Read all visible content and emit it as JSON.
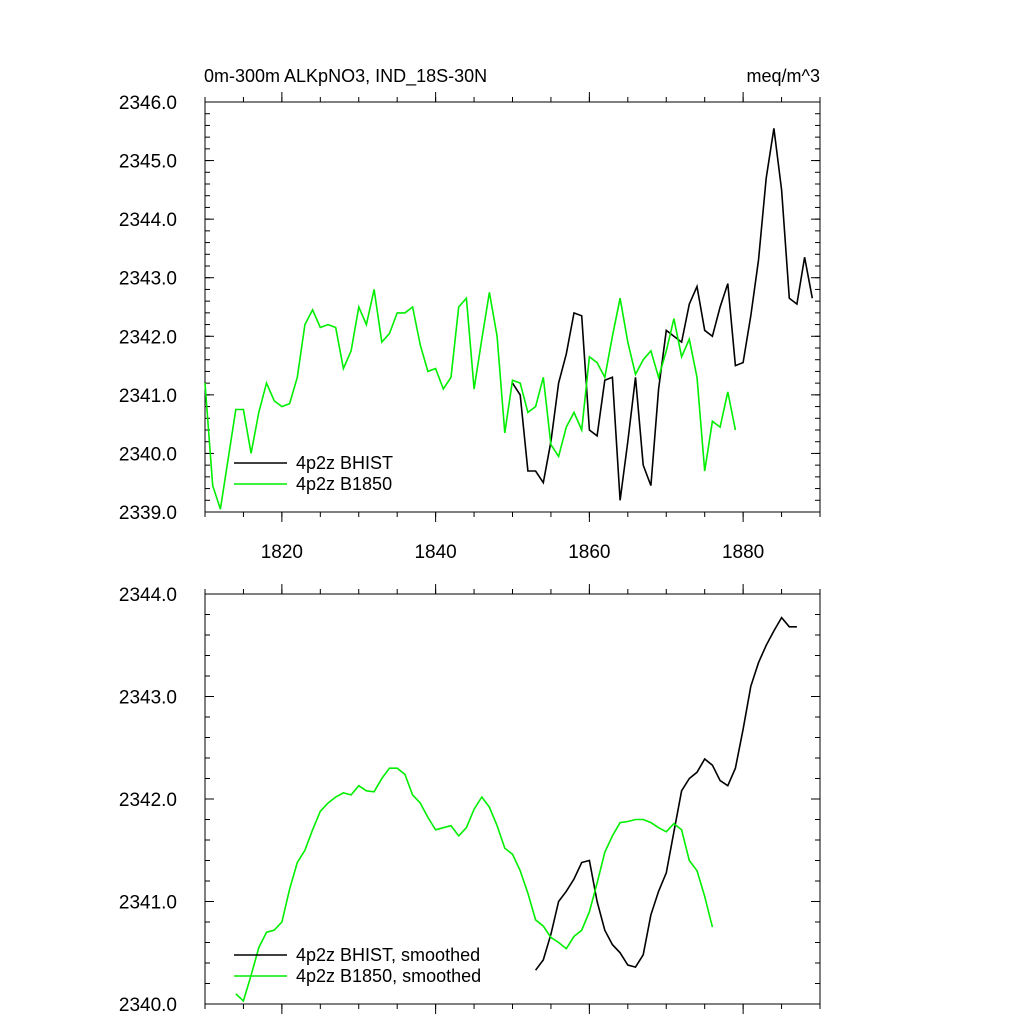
{
  "chart_data": [
    {
      "type": "line",
      "title": "0m-300m ALKpNO3, IND_18S-30N",
      "units": "meq/m^3",
      "xlabel": "",
      "ylabel": "",
      "xlim": [
        1810,
        1890
      ],
      "ylim": [
        2339.0,
        2346.0
      ],
      "x_ticks": [
        1820,
        1840,
        1860,
        1880
      ],
      "x_tick_labels": [
        "1820",
        "1840",
        "1860",
        "1880"
      ],
      "y_ticks": [
        2339.0,
        2340.0,
        2341.0,
        2342.0,
        2343.0,
        2344.0,
        2345.0,
        2346.0
      ],
      "y_tick_labels": [
        "2339.0",
        "2340.0",
        "2341.0",
        "2342.0",
        "2343.0",
        "2344.0",
        "2345.0",
        "2346.0"
      ],
      "legend_position": "bottom-left",
      "grid": false,
      "series": [
        {
          "name": "4p2z BHIST",
          "color": "#000000",
          "x": [
            1850,
            1851,
            1852,
            1853,
            1854,
            1855,
            1856,
            1857,
            1858,
            1859,
            1860,
            1861,
            1862,
            1863,
            1864,
            1865,
            1866,
            1867,
            1868,
            1869,
            1870,
            1871,
            1872,
            1873,
            1874,
            1875,
            1876,
            1877,
            1878,
            1879,
            1880,
            1881,
            1882,
            1883,
            1884,
            1885,
            1886,
            1887,
            1888,
            1889
          ],
          "y": [
            2341.2,
            2341.0,
            2339.7,
            2339.7,
            2339.5,
            2340.2,
            2341.2,
            2341.7,
            2342.4,
            2342.35,
            2340.4,
            2340.3,
            2341.25,
            2341.3,
            2339.2,
            2340.2,
            2341.3,
            2339.8,
            2339.45,
            2341.1,
            2342.1,
            2342.0,
            2341.9,
            2342.55,
            2342.85,
            2342.1,
            2342.0,
            2342.5,
            2342.9,
            2341.5,
            2341.55,
            2342.35,
            2343.3,
            2344.7,
            2345.55,
            2344.5,
            2342.65,
            2342.55,
            2343.35,
            2342.65
          ]
        },
        {
          "name": "4p2z B1850",
          "color": "#00ee00",
          "x": [
            1810,
            1811,
            1812,
            1813,
            1814,
            1815,
            1816,
            1817,
            1818,
            1819,
            1820,
            1821,
            1822,
            1823,
            1824,
            1825,
            1826,
            1827,
            1828,
            1829,
            1830,
            1831,
            1832,
            1833,
            1834,
            1835,
            1836,
            1837,
            1838,
            1839,
            1840,
            1841,
            1842,
            1843,
            1844,
            1845,
            1846,
            1847,
            1848,
            1849,
            1850,
            1851,
            1852,
            1853,
            1854,
            1855,
            1856,
            1857,
            1858,
            1859,
            1860,
            1861,
            1862,
            1863,
            1864,
            1865,
            1866,
            1867,
            1868,
            1869,
            1870,
            1871,
            1872,
            1873,
            1874,
            1875,
            1876,
            1877,
            1878,
            1879
          ],
          "y": [
            2341.2,
            2339.45,
            2339.05,
            2339.9,
            2340.75,
            2340.75,
            2340.0,
            2340.7,
            2341.2,
            2340.9,
            2340.8,
            2340.85,
            2341.3,
            2342.2,
            2342.45,
            2342.15,
            2342.2,
            2342.15,
            2341.45,
            2341.75,
            2342.5,
            2342.2,
            2342.8,
            2341.9,
            2342.05,
            2342.4,
            2342.4,
            2342.5,
            2341.85,
            2341.4,
            2341.45,
            2341.1,
            2341.3,
            2342.5,
            2342.65,
            2341.1,
            2341.95,
            2342.75,
            2342.0,
            2340.35,
            2341.25,
            2341.2,
            2340.7,
            2340.8,
            2341.3,
            2340.15,
            2339.95,
            2340.45,
            2340.7,
            2340.4,
            2341.65,
            2341.55,
            2341.3,
            2342.0,
            2342.65,
            2341.9,
            2341.35,
            2341.6,
            2341.75,
            2341.3,
            2341.75,
            2342.3,
            2341.65,
            2341.95,
            2341.3,
            2339.7,
            2340.55,
            2340.45,
            2341.05,
            2340.4
          ]
        }
      ]
    },
    {
      "type": "line",
      "title": "",
      "xlabel": "",
      "ylabel": "",
      "xlim": [
        1810,
        1890
      ],
      "ylim": [
        2340.0,
        2344.0
      ],
      "x_ticks": [
        1820,
        1840,
        1860,
        1880
      ],
      "y_ticks": [
        2340.0,
        2341.0,
        2342.0,
        2343.0,
        2344.0
      ],
      "y_tick_labels": [
        "2340.0",
        "2341.0",
        "2342.0",
        "2343.0",
        "2344.0"
      ],
      "legend_position": "bottom-left",
      "grid": false,
      "series": [
        {
          "name": "4p2z BHIST, smoothed",
          "color": "#000000",
          "x": [
            1853,
            1854,
            1855,
            1856,
            1857,
            1858,
            1859,
            1860,
            1861,
            1862,
            1863,
            1864,
            1865,
            1866,
            1867,
            1868,
            1869,
            1870,
            1871,
            1872,
            1873,
            1874,
            1875,
            1876,
            1877,
            1878,
            1879,
            1880,
            1881,
            1882,
            1883,
            1884,
            1885,
            1886,
            1887
          ],
          "y": [
            2340.33,
            2340.43,
            2340.68,
            2341.0,
            2341.1,
            2341.22,
            2341.38,
            2341.4,
            2341.0,
            2340.72,
            2340.58,
            2340.5,
            2340.38,
            2340.36,
            2340.48,
            2340.87,
            2341.1,
            2341.28,
            2341.68,
            2342.08,
            2342.2,
            2342.26,
            2342.39,
            2342.33,
            2342.18,
            2342.13,
            2342.3,
            2342.68,
            2343.1,
            2343.33,
            2343.5,
            2343.64,
            2343.77,
            2343.68,
            2343.68
          ]
        },
        {
          "name": "4p2z B1850, smoothed",
          "color": "#00ee00",
          "x": [
            1814,
            1815,
            1816,
            1817,
            1818,
            1819,
            1820,
            1821,
            1822,
            1823,
            1824,
            1825,
            1826,
            1827,
            1828,
            1829,
            1830,
            1831,
            1832,
            1833,
            1834,
            1835,
            1836,
            1837,
            1838,
            1839,
            1840,
            1841,
            1842,
            1843,
            1844,
            1845,
            1846,
            1847,
            1848,
            1849,
            1850,
            1851,
            1852,
            1853,
            1854,
            1855,
            1856,
            1857,
            1858,
            1859,
            1860,
            1861,
            1862,
            1863,
            1864,
            1865,
            1866,
            1867,
            1868,
            1869,
            1870,
            1871,
            1872,
            1873,
            1874,
            1875,
            1876
          ],
          "y": [
            2340.1,
            2340.03,
            2340.28,
            2340.55,
            2340.7,
            2340.72,
            2340.8,
            2341.12,
            2341.38,
            2341.5,
            2341.7,
            2341.88,
            2341.96,
            2342.02,
            2342.06,
            2342.04,
            2342.13,
            2342.08,
            2342.07,
            2342.2,
            2342.3,
            2342.3,
            2342.24,
            2342.04,
            2341.96,
            2341.82,
            2341.7,
            2341.72,
            2341.74,
            2341.64,
            2341.72,
            2341.9,
            2342.02,
            2341.92,
            2341.74,
            2341.52,
            2341.46,
            2341.3,
            2341.08,
            2340.82,
            2340.76,
            2340.65,
            2340.6,
            2340.54,
            2340.66,
            2340.72,
            2340.9,
            2341.18,
            2341.48,
            2341.64,
            2341.77,
            2341.78,
            2341.8,
            2341.8,
            2341.77,
            2341.72,
            2341.68,
            2341.76,
            2341.7,
            2341.4,
            2341.3,
            2341.05,
            2340.75
          ]
        }
      ]
    }
  ]
}
